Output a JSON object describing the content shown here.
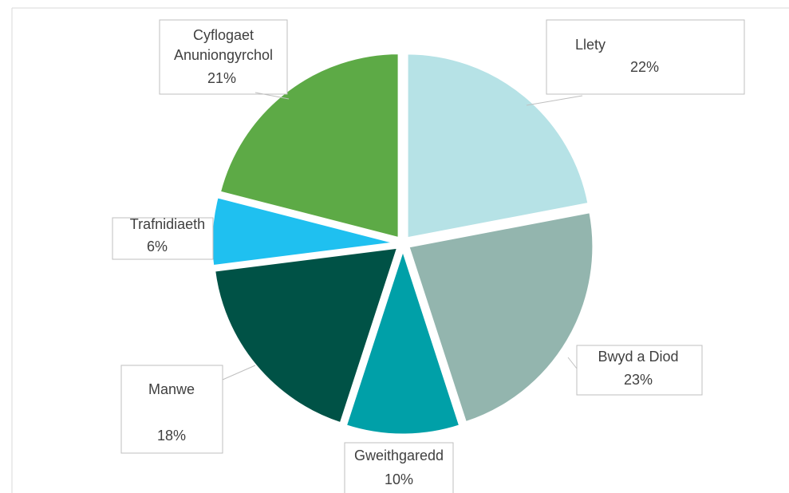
{
  "chart_data": {
    "type": "pie",
    "categories": [
      "Llety",
      "Bwyd a Diod",
      "Gweithgaredd",
      "Manwe",
      "Trafnidiaeth",
      "Cyflogaet Anuniongyrchol"
    ],
    "values": [
      22,
      23,
      10,
      18,
      6,
      21
    ],
    "value_labels": [
      "22%",
      "23%",
      "10%",
      "18%",
      "6%",
      "21%"
    ],
    "colors": [
      "#b6e2e6",
      "#93b5ae",
      "#00a0a8",
      "#005246",
      "#1fc0f0",
      "#5daa46"
    ]
  }
}
